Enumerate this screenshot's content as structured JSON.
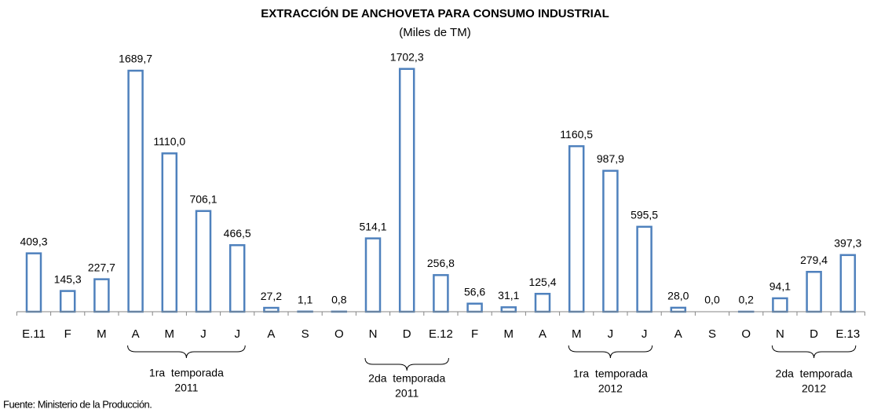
{
  "chart_data": {
    "type": "bar",
    "title": "EXTRACCIÓN DE ANCHOVETA PARA CONSUMO INDUSTRIAL",
    "subtitle": "(Miles de TM)",
    "categories": [
      "E.11",
      "F",
      "M",
      "A",
      "M",
      "J",
      "J",
      "A",
      "S",
      "O",
      "N",
      "D",
      "E.12",
      "F",
      "M",
      "A",
      "M",
      "J",
      "J",
      "A",
      "S",
      "O",
      "N",
      "D",
      "E.13"
    ],
    "values": [
      409.3,
      145.3,
      227.7,
      1689.7,
      1110.0,
      706.1,
      466.5,
      27.2,
      1.1,
      0.8,
      514.1,
      1702.3,
      256.8,
      56.6,
      31.1,
      125.4,
      1160.5,
      987.9,
      595.5,
      28.0,
      0.0,
      0.2,
      94.1,
      279.4,
      397.3
    ],
    "value_labels": [
      "409,3",
      "145,3",
      "227,7",
      "1689,7",
      "1110,0",
      "706,1",
      "466,5",
      "27,2",
      "1,1",
      "0,8",
      "514,1",
      "1702,3",
      "256,8",
      "56,6",
      "31,1",
      "125,4",
      "1160,5",
      "987,9",
      "595,5",
      "28,0",
      "0,0",
      "0,2",
      "94,1",
      "279,4",
      "397,3"
    ],
    "color": "#4f81bd",
    "ylim": [
      0,
      1800
    ],
    "annotations": [
      {
        "lines": [
          "1ra  temporada",
          "2011"
        ]
      },
      {
        "lines": [
          "2da  temporada",
          "2011"
        ]
      },
      {
        "lines": [
          "1ra  temporada",
          "2012"
        ]
      },
      {
        "lines": [
          "2da  temporada",
          "2012"
        ]
      }
    ],
    "source": "Fuente: Ministerio de la Producción."
  }
}
